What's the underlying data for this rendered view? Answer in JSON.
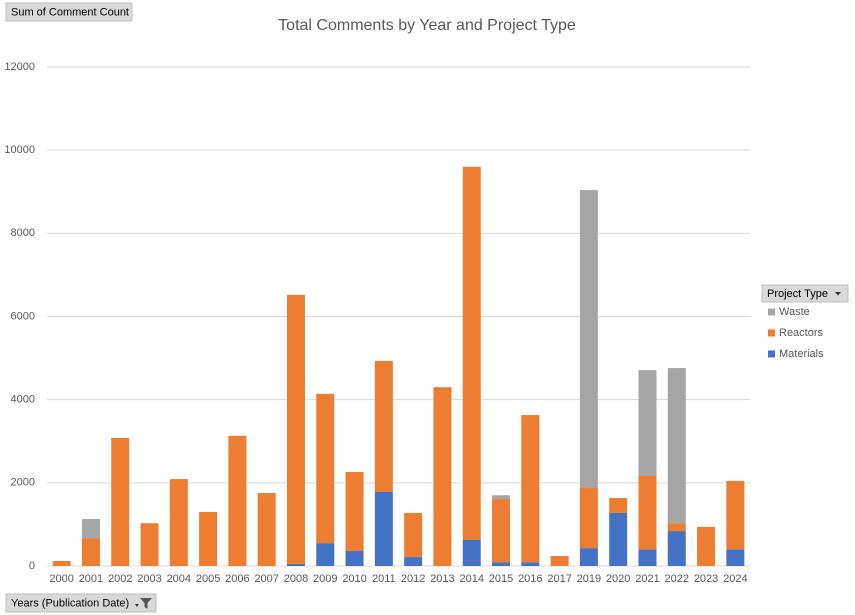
{
  "pivot_buttons": {
    "value_field": "Sum of Comment Count",
    "axis_field": "Years (Publication Date)",
    "legend_field": "Project Type"
  },
  "chart_data": {
    "type": "stacked_bar",
    "title": "Total Comments by Year and Project Type",
    "categories": [
      "2000",
      "2001",
      "2002",
      "2003",
      "2004",
      "2005",
      "2006",
      "2007",
      "2008",
      "2009",
      "2010",
      "2011",
      "2012",
      "2013",
      "2014",
      "2015",
      "2016",
      "2017",
      "2019",
      "2020",
      "2021",
      "2022",
      "2023",
      "2024"
    ],
    "series": [
      {
        "name": "Materials",
        "color": "#4472c4",
        "values": [
          null,
          null,
          null,
          null,
          null,
          null,
          null,
          null,
          50,
          550,
          360,
          1780,
          215,
          null,
          625,
          90,
          90,
          null,
          430,
          1275,
          400,
          840,
          null,
          400
        ]
      },
      {
        "name": "Reactors",
        "color": "#ed7d31",
        "values": [
          120,
          670,
          3080,
          1030,
          2090,
          1300,
          3130,
          1755,
          6470,
          3590,
          1900,
          3150,
          1060,
          4300,
          8975,
          1520,
          3540,
          240,
          1445,
          360,
          1765,
          190,
          940,
          1645
        ]
      },
      {
        "name": "Waste",
        "color": "#a5a5a5",
        "values": [
          null,
          460,
          null,
          null,
          null,
          null,
          null,
          null,
          null,
          null,
          null,
          null,
          null,
          null,
          null,
          90,
          null,
          null,
          7165,
          null,
          2545,
          3730,
          null,
          null
        ]
      }
    ],
    "ylim": [
      0,
      12000
    ],
    "yticks": [
      0,
      2000,
      4000,
      6000,
      8000,
      10000,
      12000
    ],
    "grid": true,
    "legend": "right"
  }
}
